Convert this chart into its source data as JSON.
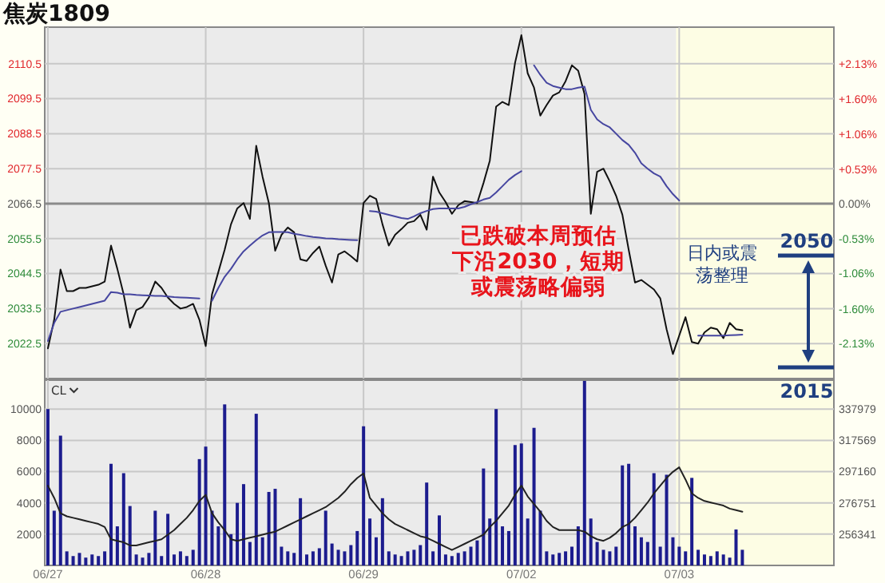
{
  "chart_data": [
    {
      "type": "line",
      "title": "焦炭1809",
      "categories": [
        null,
        null,
        null,
        null,
        null,
        null,
        null,
        null,
        null,
        null,
        null,
        null,
        null,
        null,
        null,
        null,
        null,
        null,
        null,
        null,
        null,
        null,
        null,
        null,
        null,
        null,
        null,
        null,
        null,
        null,
        null,
        null,
        null,
        null,
        null,
        null,
        null,
        null,
        null,
        null,
        null,
        null,
        null,
        null,
        null,
        null,
        null,
        null,
        null,
        null,
        null,
        null,
        null,
        null,
        null,
        null,
        null,
        null,
        null,
        null,
        null,
        null,
        null,
        null,
        null,
        null,
        null,
        null,
        null,
        null,
        null,
        null,
        null,
        null,
        null,
        null,
        null,
        null,
        null,
        null,
        null,
        null,
        null,
        null,
        null,
        null,
        null,
        null,
        null,
        null,
        null,
        null,
        null,
        null,
        null,
        null,
        null,
        null,
        null,
        null,
        null,
        null,
        null,
        null,
        null,
        null,
        null,
        null,
        null,
        null,
        null,
        null,
        null,
        null,
        null,
        null,
        null,
        null,
        null,
        null,
        null,
        null,
        null,
        null,
        null
      ],
      "ylim": [
        2011.5,
        2122
      ],
      "yticks": [
        2022.5,
        2033.5,
        2044.5,
        2055.5,
        2066.5,
        2077.5,
        2088.5,
        2099.5,
        2110.5
      ],
      "y2lim": [
        -2.66,
        2.69
      ],
      "y2ticks": [
        {
          "value": -2.13,
          "label": "-2.13%"
        },
        {
          "value": -1.6,
          "label": "-1.60%"
        },
        {
          "value": -1.06,
          "label": "-1.06%"
        },
        {
          "value": -0.53,
          "label": "-0.53%"
        },
        {
          "value": 0,
          "label": "0.00%"
        },
        {
          "value": 0.53,
          "label": "+0.53%"
        },
        {
          "value": 1.06,
          "label": "+1.06%"
        },
        {
          "value": 1.6,
          "label": "+1.60%"
        },
        {
          "value": 2.13,
          "label": "+2.13%"
        }
      ],
      "grid": true,
      "tick_labels": "y",
      "ref_lines": [
        {
          "axis": "y",
          "value": 2066.5,
          "color": "#8a8a8a"
        }
      ],
      "annotations": [
        "已跌破本周预估下沿2030，短期或震荡略偏弱",
        "日内或震荡整理",
        "2050",
        "2015"
      ],
      "series": [
        {
          "color": "#111111",
          "values": [
            2021,
            2030,
            2045.8,
            2039,
            2039,
            2040,
            2040,
            2040.5,
            2041,
            2042,
            2053.3,
            2046,
            2038,
            2027.5,
            2033,
            2034,
            2037,
            2042,
            2040,
            2037,
            2035,
            2033.5,
            2034,
            2035,
            2030,
            2021.7,
            2038,
            2045,
            2052,
            2060,
            2065,
            2066.7,
            2061.7,
            2084.7,
            2075,
            2066.7,
            2051.7,
            2056.7,
            2059,
            2057.5,
            2049,
            2048.5,
            2051,
            2053,
            2047,
            2041.7,
            2050.5,
            2051.5,
            2050,
            2048.3,
            2066.7,
            2069,
            2068,
            2060,
            2053.3,
            2056.7,
            2058.5,
            2060.5,
            2061,
            2063,
            2058.3,
            2075,
            2070,
            2067,
            2063.3,
            2066,
            2067.3,
            2067,
            2066.7,
            2073,
            2080,
            2097,
            2098.5,
            2097.5,
            2110.8,
            2119.5,
            2107.5,
            2103,
            2094.2,
            2097.5,
            2100.5,
            2101.5,
            2105,
            2110,
            2108.3,
            2101,
            2063.3,
            2076.5,
            2077.5,
            2073.5,
            2069,
            2063,
            2052,
            2041.7,
            2042.5,
            2041,
            2039.5,
            2036.7,
            2027,
            2019.2,
            2025,
            2030.8,
            2023,
            2022.5,
            2026,
            2027.5,
            2027,
            2024.2,
            2029,
            2027,
            2026.7,
            null,
            null,
            null,
            null,
            null,
            null,
            null,
            null,
            null,
            null,
            null,
            null,
            null,
            null
          ]
        },
        {
          "color": "#4646a0",
          "values": [
            2023.3,
            2029,
            2032.5,
            2033,
            2033.5,
            2034,
            2034.5,
            2035,
            2035.5,
            2036,
            2038.7,
            2038.5,
            2038,
            2038,
            2037.8,
            2037.7,
            2037.6,
            2037.5,
            2037.5,
            2037.3,
            2037.1,
            2037,
            2036.9,
            2036.8,
            2036.7,
            null,
            2036,
            2040,
            2043.5,
            2046,
            2049,
            2051.5,
            2053.3,
            2055,
            2056.5,
            2057.5,
            2057.6,
            2057.6,
            2057.5,
            2057,
            2056.7,
            2056.3,
            2056,
            2055.8,
            2055.6,
            2055.5,
            2055.3,
            2055.2,
            2055.1,
            2055,
            null,
            2064.2,
            2064,
            2063.5,
            2063,
            2062.5,
            2062,
            2061.7,
            2062.5,
            2063.5,
            2064.2,
            2064.8,
            2065,
            2065,
            2065,
            2065,
            2065.5,
            2066.3,
            2067,
            2067.8,
            2068.3,
            2070,
            2072,
            2074,
            2075.5,
            2076.7,
            null,
            2110,
            2107,
            2104.5,
            2103.5,
            2103,
            2102.5,
            2102.5,
            2103,
            2103.3,
            2096,
            2093,
            2091.5,
            2090.5,
            2088.5,
            2086.5,
            2085,
            2082.5,
            2079.2,
            2077.5,
            2076,
            2075,
            2072,
            2069.5,
            2067.5,
            null,
            null,
            2025,
            2025,
            2025,
            2025,
            2025,
            2025.1,
            2025.2,
            2025.3,
            null,
            null,
            null,
            null,
            null,
            null,
            null,
            null,
            null,
            null,
            null,
            null,
            null,
            null
          ]
        }
      ]
    },
    {
      "type": "bar",
      "categories": [
        "06/27",
        null,
        null,
        null,
        null,
        null,
        null,
        null,
        null,
        null,
        null,
        null,
        null,
        null,
        null,
        null,
        null,
        null,
        null,
        null,
        null,
        null,
        null,
        null,
        null,
        "06/28",
        null,
        null,
        null,
        null,
        null,
        null,
        null,
        null,
        null,
        null,
        null,
        null,
        null,
        null,
        null,
        null,
        null,
        null,
        null,
        null,
        null,
        null,
        null,
        null,
        "06/29",
        null,
        null,
        null,
        null,
        null,
        null,
        null,
        null,
        null,
        null,
        null,
        null,
        null,
        null,
        null,
        null,
        null,
        null,
        null,
        null,
        null,
        null,
        null,
        null,
        "07/02",
        null,
        null,
        null,
        null,
        null,
        null,
        null,
        null,
        null,
        null,
        null,
        null,
        null,
        null,
        null,
        null,
        null,
        null,
        null,
        null,
        null,
        null,
        null,
        null,
        "07/03",
        null,
        null,
        null,
        null,
        null,
        null,
        null,
        null,
        null,
        null,
        null,
        null,
        null,
        null,
        null,
        null,
        null,
        null,
        null,
        null,
        null,
        null,
        null,
        null
      ],
      "ylim": [
        0,
        11850
      ],
      "yticks": [
        2000,
        4000,
        6000,
        8000,
        10000
      ],
      "y2lim": [
        235932,
        356858
      ],
      "y2ticks": [
        256341,
        276751,
        297160,
        317569,
        337979
      ],
      "grid": true,
      "annotations": [
        "CL"
      ],
      "series": [
        {
          "color": "#1c1c8e",
          "values": [
            10000,
            3500,
            8300,
            900,
            600,
            800,
            500,
            700,
            600,
            900,
            6500,
            2500,
            5900,
            3800,
            700,
            500,
            800,
            3500,
            600,
            3300,
            700,
            900,
            600,
            1000,
            6800,
            7600,
            3500,
            2500,
            10300,
            2000,
            4000,
            5200,
            1500,
            9700,
            1800,
            4700,
            4900,
            1200,
            900,
            800,
            4300,
            700,
            900,
            1100,
            3500,
            1400,
            1000,
            900,
            1300,
            2200,
            8900,
            3000,
            1800,
            4300,
            900,
            700,
            600,
            900,
            1000,
            1300,
            5300,
            900,
            3200,
            700,
            600,
            800,
            900,
            1200,
            1600,
            6200,
            3000,
            10000,
            2500,
            2200,
            7700,
            7800,
            3000,
            8800,
            3500,
            900,
            700,
            800,
            900,
            1200,
            2500,
            11800,
            3000,
            1500,
            1000,
            900,
            1200,
            6400,
            6500,
            2500,
            1800,
            1500,
            5900,
            1200,
            5800,
            1800,
            1200,
            900,
            5600,
            1000,
            700,
            600,
            900,
            700,
            500,
            2300,
            1000,
            null,
            null,
            null,
            null,
            null,
            null,
            null,
            null,
            null,
            null,
            null,
            null,
            null,
            null
          ]
        },
        {
          "type": "line",
          "axis": "y2",
          "color": "#222222",
          "values": [
            288000,
            280000,
            270000,
            268000,
            267000,
            266000,
            265000,
            264000,
            263000,
            261000,
            253000,
            252000,
            251000,
            249000,
            249000,
            250000,
            251000,
            252000,
            253000,
            256000,
            259000,
            263000,
            267000,
            272000,
            278000,
            282000,
            270000,
            264000,
            259000,
            253000,
            252000,
            253000,
            254000,
            255000,
            256000,
            257000,
            258000,
            260000,
            262000,
            264000,
            266000,
            268000,
            270000,
            272000,
            274000,
            277000,
            280000,
            284000,
            289000,
            293000,
            296000,
            280000,
            275000,
            270000,
            266000,
            263000,
            261000,
            259000,
            257000,
            255000,
            254000,
            252000,
            250000,
            248000,
            246000,
            248000,
            250000,
            252000,
            254000,
            256000,
            261000,
            265000,
            270000,
            275000,
            282000,
            288000,
            281000,
            276000,
            271000,
            265000,
            261000,
            259000,
            259000,
            259000,
            259000,
            258000,
            255000,
            253000,
            252000,
            254000,
            257000,
            261000,
            263000,
            267000,
            272000,
            277000,
            283000,
            288000,
            293000,
            297000,
            300000,
            292000,
            283000,
            280000,
            278000,
            277000,
            276000,
            275000,
            273000,
            272000,
            271000,
            null,
            null,
            null,
            null,
            null,
            null,
            null,
            null,
            null,
            null,
            null,
            null,
            null,
            null
          ]
        }
      ]
    }
  ]
}
